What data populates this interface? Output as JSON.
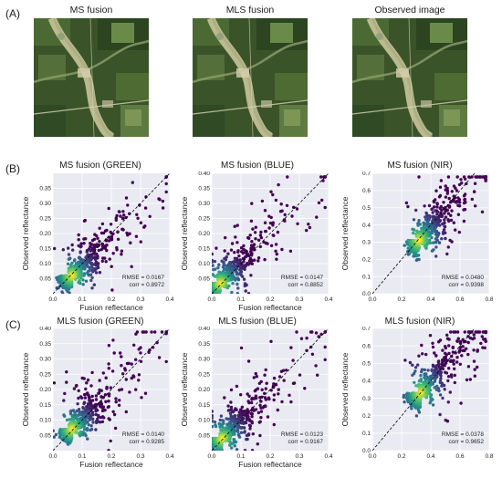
{
  "panels": {
    "a": "(A)",
    "b": "(B)",
    "c": "(C)"
  },
  "images": {
    "titles": [
      "MS fusion",
      "MLS fusion",
      "Observed image"
    ]
  },
  "chart_data": [
    {
      "type": "scatter",
      "title": "MS fusion (GREEN)",
      "xlabel": "Fusion reflectance",
      "ylabel": "Observed reflectance",
      "xlim": [
        0.0,
        0.4
      ],
      "ylim": [
        0.0,
        0.4
      ],
      "xticks": [
        "0.0",
        "0.1",
        "0.2",
        "0.3",
        "0.4"
      ],
      "yticks": [
        "0.05",
        "0.10",
        "0.15",
        "0.20",
        "0.25",
        "0.30",
        "0.35"
      ],
      "rmse": "RMSE = 0.0167",
      "corr": "corr = 0.8972",
      "density_center": [
        0.065,
        0.06
      ],
      "reference_line": "1:1"
    },
    {
      "type": "scatter",
      "title": "MS fusion (BLUE)",
      "xlabel": "Fusion reflectance",
      "ylabel": "Observed reflectance",
      "xlim": [
        0.0,
        0.4
      ],
      "ylim": [
        0.0,
        0.4
      ],
      "xticks": [
        "0.0",
        "0.1",
        "0.2",
        "0.3",
        "0.4"
      ],
      "yticks": [
        "0.05",
        "0.10",
        "0.15",
        "0.20",
        "0.25",
        "0.30",
        "0.35",
        "0.40"
      ],
      "rmse": "RMSE = 0.0147",
      "corr": "corr = 0.8852",
      "density_center": [
        0.03,
        0.035
      ],
      "reference_line": "1:1"
    },
    {
      "type": "scatter",
      "title": "MS fusion (NIR)",
      "xlabel": "",
      "ylabel": "Observed reflectance",
      "xlim": [
        0.0,
        0.8
      ],
      "ylim": [
        0.0,
        0.7
      ],
      "xticks": [
        "0.0",
        "0.2",
        "0.4",
        "0.6",
        "0.8"
      ],
      "yticks": [
        "0.0",
        "0.1",
        "0.2",
        "0.3",
        "0.4",
        "0.5",
        "0.6",
        "0.7"
      ],
      "rmse": "RMSE = 0.0480",
      "corr": "corr = 0.9398",
      "density_center": [
        0.32,
        0.31
      ],
      "reference_line": "1:1"
    },
    {
      "type": "scatter",
      "title": "MLS fusion (GREEN)",
      "xlabel": "Fusion reflectance",
      "ylabel": "Observed reflectance",
      "xlim": [
        0.0,
        0.4
      ],
      "ylim": [
        0.0,
        0.4
      ],
      "xticks": [
        "0.0",
        "0.1",
        "0.2",
        "0.3",
        "0.4"
      ],
      "yticks": [
        "0.05",
        "0.10",
        "0.15",
        "0.20",
        "0.25",
        "0.30",
        "0.35",
        "0.40"
      ],
      "rmse": "RMSE = 0.0140",
      "corr": "corr = 0.9285",
      "density_center": [
        0.065,
        0.07
      ],
      "reference_line": "1:1"
    },
    {
      "type": "scatter",
      "title": "MLS fusion (BLUE)",
      "xlabel": "Fusion reflectance",
      "ylabel": "Observed reflectance",
      "xlim": [
        0.0,
        0.4
      ],
      "ylim": [
        0.0,
        0.4
      ],
      "xticks": [
        "0.0",
        "0.1",
        "0.2",
        "0.3",
        "0.4"
      ],
      "yticks": [
        "0.05",
        "0.10",
        "0.15",
        "0.20",
        "0.25",
        "0.30",
        "0.35",
        "0.40"
      ],
      "rmse": "RMSE = 0.0123",
      "corr": "corr = 0.9167",
      "density_center": [
        0.035,
        0.04
      ],
      "reference_line": "1:1"
    },
    {
      "type": "scatter",
      "title": "MLS fusion (NIR)",
      "xlabel": "",
      "ylabel": "Observed reflectance",
      "xlim": [
        0.0,
        0.8
      ],
      "ylim": [
        0.0,
        0.7
      ],
      "xticks": [
        "0.0",
        "0.2",
        "0.4",
        "0.6",
        "0.8"
      ],
      "yticks": [
        "0.0",
        "0.1",
        "0.2",
        "0.3",
        "0.4",
        "0.5",
        "0.6",
        "0.7"
      ],
      "rmse": "RMSE = 0.0378",
      "corr": "corr = 0.9652",
      "density_center": [
        0.33,
        0.33
      ],
      "reference_line": "1:1"
    }
  ],
  "colors": {
    "plot_bg": "#eaeaf2",
    "grid": "#ffffff",
    "density_low": "#440154",
    "density_mid": "#21918c",
    "density_high": "#fde725"
  }
}
